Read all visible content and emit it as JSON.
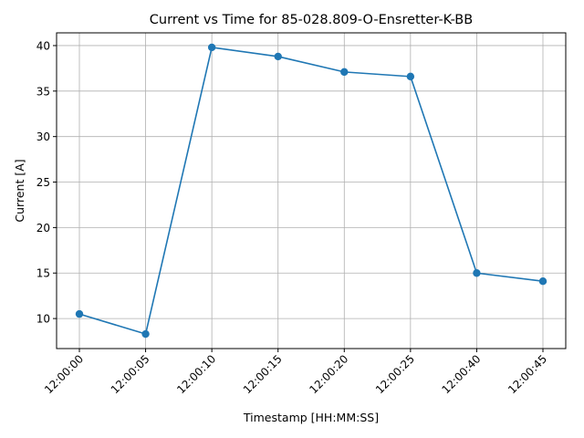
{
  "chart_data": {
    "type": "line",
    "title": "Current vs Time for 85-028.809-O-Ensretter-K-BB",
    "xlabel": "Timestamp [HH:MM:SS]",
    "ylabel": "Current [A]",
    "categories": [
      "12:00:00",
      "12:00:05",
      "12:00:10",
      "12:00:15",
      "12:00:20",
      "12:00:25",
      "12:00:40",
      "12:00:45"
    ],
    "series": [
      {
        "values": [
          10.5,
          8.3,
          39.8,
          38.8,
          37.1,
          36.6,
          15.0,
          14.1
        ],
        "color": "#1f77b4"
      }
    ],
    "ylim": [
      6.7,
      41.4
    ],
    "yticks": [
      10,
      15,
      20,
      25,
      30,
      35,
      40
    ],
    "grid": true,
    "marker": "circle"
  }
}
